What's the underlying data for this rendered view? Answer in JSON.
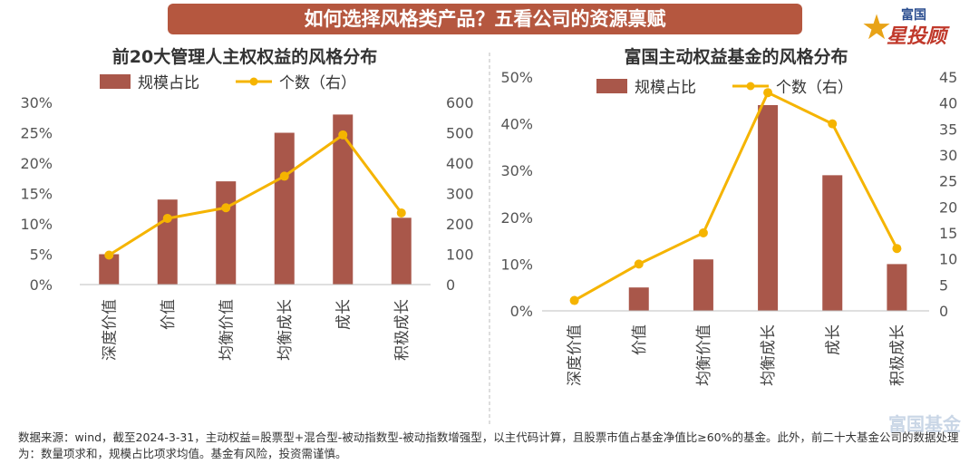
{
  "banner": {
    "title": "如何选择风格类产品？五看公司的资源禀赋"
  },
  "brand": {
    "top": "富国",
    "main": "星投顾",
    "icon": "star-icon",
    "watermark": "富国基金"
  },
  "legend": {
    "bar": "规模占比",
    "line": "个数（右）"
  },
  "colors": {
    "bar": "#a9574a",
    "line": "#f5b400",
    "banner": "#b5573f"
  },
  "footnote": "数据来源：wind，截至2024-3-31，主动权益=股票型+混合型-被动指数型-被动指数增强型，以主代码计算，且股票市值占基金净值比≥60%的基金。此外，前二十大基金公司的数据处理为：数量项求和，规模占比项求均值。基金有风险，投资需谨慎。",
  "chart_data": [
    {
      "type": "bar",
      "title": "前20大管理人主权权益的风格分布",
      "categories": [
        "深度价值",
        "价值",
        "均衡价值",
        "均衡成长",
        "成长",
        "积极成长"
      ],
      "series": [
        {
          "name": "规模占比",
          "type": "bar",
          "axis": "left",
          "values": [
            5,
            14,
            17,
            25,
            28,
            11
          ]
        },
        {
          "name": "个数（右）",
          "type": "line",
          "axis": "right",
          "values": [
            97,
            218,
            253,
            357,
            493,
            236
          ]
        }
      ],
      "ylim_left": [
        0,
        30
      ],
      "yticks_left": [
        "0%",
        "5%",
        "10%",
        "15%",
        "20%",
        "25%",
        "30%"
      ],
      "ylim_right": [
        0,
        600
      ],
      "yticks_right": [
        "0",
        "100",
        "200",
        "300",
        "400",
        "500",
        "600"
      ],
      "legend": "top",
      "grid": false
    },
    {
      "type": "bar",
      "title": "富国主动权益基金的风格分布",
      "categories": [
        "深度价值",
        "价值",
        "均衡价值",
        "均衡成长",
        "成长",
        "积极成长"
      ],
      "series": [
        {
          "name": "规模占比",
          "type": "bar",
          "axis": "left",
          "values": [
            0,
            5,
            11,
            44,
            29,
            10
          ]
        },
        {
          "name": "个数（右）",
          "type": "line",
          "axis": "right",
          "values": [
            2,
            9,
            15,
            42,
            36,
            12
          ]
        }
      ],
      "ylim_left": [
        0,
        50
      ],
      "yticks_left": [
        "0%",
        "10%",
        "20%",
        "30%",
        "40%",
        "50%"
      ],
      "ylim_right": [
        0,
        45
      ],
      "yticks_right": [
        "0",
        "5",
        "10",
        "15",
        "20",
        "25",
        "30",
        "35",
        "40",
        "45"
      ],
      "legend": "top",
      "grid": false
    }
  ]
}
